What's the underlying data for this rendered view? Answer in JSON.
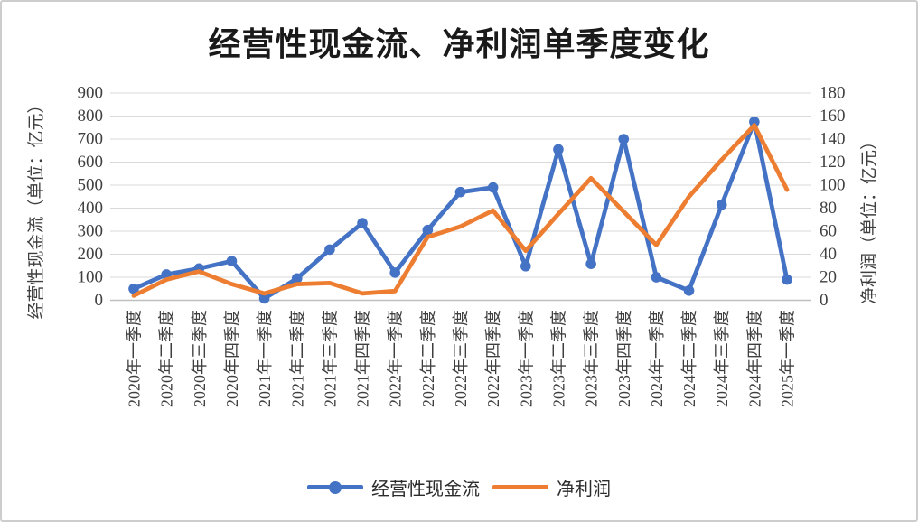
{
  "title": "经营性现金流、净利润单季度变化",
  "left_axis": {
    "title": "经营性现金流（单位：亿元）",
    "min": 0,
    "max": 900,
    "step": 100,
    "tick_labels": [
      "0",
      "100",
      "200",
      "300",
      "400",
      "500",
      "600",
      "700",
      "800",
      "900"
    ]
  },
  "right_axis": {
    "title": "净利润（单位：亿元）",
    "min": 0,
    "max": 180,
    "step": 20,
    "tick_labels": [
      "0",
      "20",
      "40",
      "60",
      "80",
      "100",
      "120",
      "140",
      "160",
      "180"
    ]
  },
  "legend": [
    {
      "name": "经营性现金流",
      "color": "#4472C4",
      "marker": "circle"
    },
    {
      "name": "净利润",
      "color": "#ED7D31",
      "marker": "none"
    }
  ],
  "colors": {
    "series_blue": "#4472C4",
    "series_orange": "#ED7D31",
    "gridline": "#D9D9D9",
    "axis_line": "#BFBFBF",
    "tick_text": "#3f3f3f",
    "title_text": "#1a1a1a"
  },
  "chart_data": {
    "type": "line",
    "categories": [
      "2020年一季度",
      "2020年二季度",
      "2020年三季度",
      "2020年四季度",
      "2021年一季度",
      "2021年二季度",
      "2021年三季度",
      "2021年四季度",
      "2022年一季度",
      "2022年二季度",
      "2022年三季度",
      "2022年四季度",
      "2023年一季度",
      "2023年二季度",
      "2023年三季度",
      "2023年四季度",
      "2024年一季度",
      "2024年二季度",
      "2024年三季度",
      "2024年四季度",
      "2025年一季度"
    ],
    "series": [
      {
        "name": "经营性现金流",
        "axis": "left",
        "color": "#4472C4",
        "marker": "circle",
        "values": [
          50,
          112,
          138,
          170,
          8,
          95,
          220,
          335,
          120,
          305,
          470,
          490,
          148,
          655,
          158,
          700,
          100,
          42,
          415,
          775,
          90
        ]
      },
      {
        "name": "净利润",
        "axis": "right",
        "color": "#ED7D31",
        "marker": "none",
        "values": [
          4,
          18,
          25,
          14,
          6,
          14,
          15,
          6,
          8,
          55,
          64,
          78,
          43,
          75,
          106,
          77,
          48,
          90,
          122,
          152,
          96
        ]
      }
    ],
    "left_ylim": [
      0,
      900
    ],
    "right_ylim": [
      0,
      180
    ],
    "grid": true,
    "legend_position": "bottom"
  }
}
